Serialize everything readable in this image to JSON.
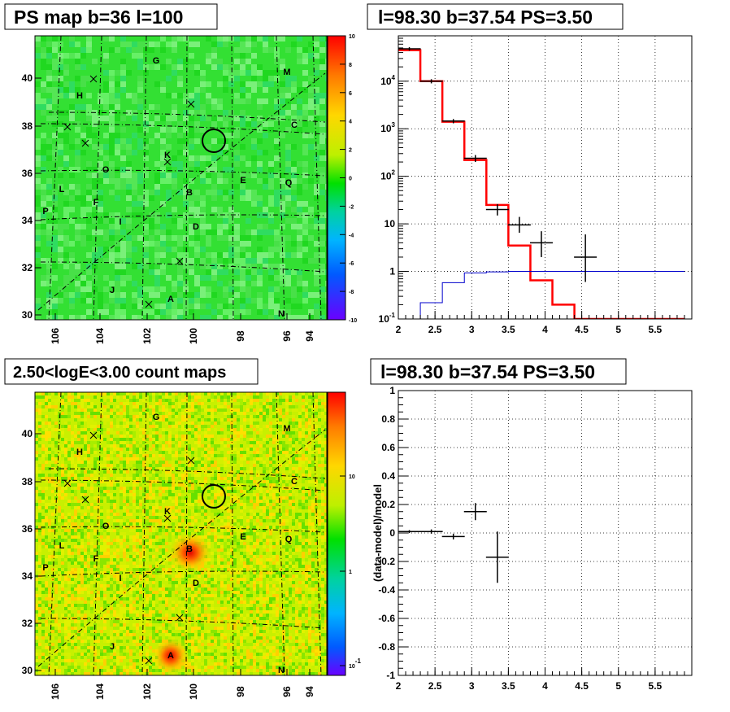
{
  "titles": {
    "ps_map": "PS map b=36 l=100",
    "spectrum": "l=98.30 b=37.54 PS=3.50",
    "count_map": "2.50<logE<3.00 count maps",
    "residual": "l=98.30 b=37.54 PS=3.50"
  },
  "chart_data": [
    {
      "type": "heatmap",
      "name": "ps_map",
      "title": "PS map b=36 l=100",
      "x_ticks": [
        "106",
        "104",
        "102",
        "100",
        "98",
        "96",
        "94"
      ],
      "y_ticks": [
        "30",
        "32",
        "34",
        "36",
        "38",
        "40"
      ],
      "colorbar_ticks": [
        "10",
        "8",
        "6",
        "4",
        "2",
        "0",
        "-2",
        "-4",
        "-6",
        "-8",
        "-10"
      ],
      "colorbar_range": [
        -10,
        10
      ],
      "sources": [
        "G",
        "M",
        "H",
        "C",
        "K",
        "O",
        "E",
        "Q",
        "L",
        "B",
        "F",
        "P",
        "I",
        "D",
        "J",
        "A",
        "N"
      ],
      "circle_position": {
        "l": 98.3,
        "b": 37.54
      }
    },
    {
      "type": "line",
      "name": "spectrum",
      "title": "l=98.30 b=37.54 PS=3.50",
      "log_y": true,
      "grid": true,
      "xlim": [
        2,
        6
      ],
      "ylim": [
        0.1,
        90000
      ],
      "x_ticks": [
        "2",
        "2.5",
        "3",
        "3.5",
        "4",
        "4.5",
        "5",
        "5.5"
      ],
      "y_ticks": [
        "10^-1",
        "1",
        "10",
        "10^2",
        "10^3",
        "10^4"
      ],
      "bin_edges": [
        2.0,
        2.3,
        2.6,
        2.9,
        3.2,
        3.5,
        3.8,
        4.1,
        4.4,
        4.7,
        5.0,
        5.3,
        5.6,
        5.9
      ],
      "series": [
        {
          "color": "#ff0000",
          "style": "hist",
          "values": [
            45000,
            10000,
            1400,
            220,
            25,
            3.5,
            0.65,
            0.2,
            0.1,
            0.1,
            0.1,
            0.1,
            0.1
          ]
        },
        {
          "color": "#0000cc",
          "style": "hist",
          "values": [
            0.1,
            0.22,
            0.58,
            0.93,
            0.98,
            1.0,
            1.0,
            1.0,
            1.0,
            1.0,
            1.0,
            1.0,
            1.0
          ]
        },
        {
          "color": "#000000",
          "style": "points",
          "x": [
            2.15,
            2.45,
            2.75,
            3.05,
            3.35,
            3.65,
            3.95,
            4.55
          ],
          "y": [
            48000,
            10000,
            1450,
            240,
            20,
            9.5,
            4,
            2
          ],
          "yerr_low": [
            44000,
            9000,
            1300,
            200,
            15,
            6.5,
            2,
            0.6
          ],
          "yerr_high": [
            52000,
            11000,
            1600,
            280,
            26,
            14,
            7,
            6
          ]
        }
      ]
    },
    {
      "type": "heatmap",
      "name": "count_map",
      "title": "2.50<logE<3.00 count maps",
      "x_ticks": [
        "106",
        "104",
        "102",
        "100",
        "98",
        "96",
        "94"
      ],
      "y_ticks": [
        "30",
        "32",
        "34",
        "36",
        "38",
        "40"
      ],
      "colorbar_ticks": [
        "10",
        "1",
        "10^-1"
      ],
      "log_colorbar": true,
      "sources": [
        "G",
        "M",
        "H",
        "C",
        "K",
        "O",
        "E",
        "Q",
        "L",
        "B",
        "F",
        "P",
        "I",
        "D",
        "J",
        "A",
        "N"
      ]
    },
    {
      "type": "scatter",
      "name": "residual",
      "title": "l=98.30 b=37.54 PS=3.50",
      "ylabel": "(data-model)/model",
      "grid": true,
      "xlim": [
        2,
        6
      ],
      "ylim": [
        -1,
        1
      ],
      "x_ticks": [
        "2",
        "2.5",
        "3",
        "3.5",
        "4",
        "4.5",
        "5",
        "5.5"
      ],
      "y_ticks": [
        "-1",
        "-0.8",
        "-0.6",
        "-0.4",
        "-0.2",
        "0",
        "0.2",
        "0.4",
        "0.6",
        "0.8",
        "1"
      ],
      "x": [
        2.15,
        2.45,
        2.75,
        3.05,
        3.35
      ],
      "y": [
        0.01,
        0.01,
        -0.025,
        0.15,
        -0.17
      ],
      "yerr": [
        0.01,
        0.015,
        0.02,
        0.06,
        0.18
      ]
    }
  ]
}
